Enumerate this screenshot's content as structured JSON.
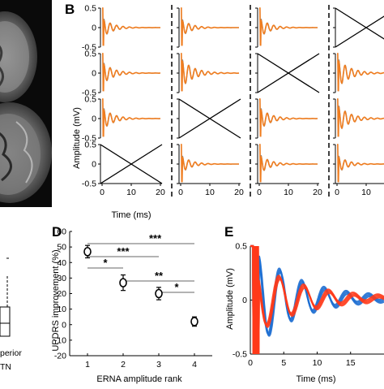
{
  "panels": {
    "A": {
      "bottom_label_1": "perior",
      "bottom_label_2": "TN"
    },
    "B": {
      "letter": "B",
      "xlabel": "Time (ms)",
      "ylabel": "Amplitude (mV)",
      "yticks": [
        "0.5",
        "0",
        "-0.5"
      ],
      "xticks": [
        "0",
        "10",
        "20"
      ],
      "xlim": [
        0,
        20
      ],
      "ylim": [
        -0.5,
        0.5
      ],
      "colors": {
        "trace1": "#f07d1f",
        "trace2": "#8a8a8a",
        "cross": "#000000",
        "divider": "#000000"
      },
      "grid": {
        "columns": 4,
        "rows": 4,
        "empty_cells": [
          [
            0,
            3
          ],
          [
            1,
            2
          ],
          [
            2,
            1
          ],
          [
            3,
            0
          ]
        ],
        "trace_strength": [
          [
            0.6,
            0.55,
            0.6,
            0.0
          ],
          [
            0.7,
            0.95,
            0.0,
            0.95
          ],
          [
            0.7,
            0.0,
            0.7,
            0.9
          ],
          [
            0.0,
            0.55,
            0.6,
            0.55
          ]
        ]
      }
    },
    "D": {
      "letter": "D",
      "chart_data": {
        "type": "scatter",
        "xlabel": "ERNA amplitude rank",
        "ylabel": "UPDRS improvement (%)",
        "x": [
          1,
          2,
          3,
          4
        ],
        "y": [
          47,
          27,
          20,
          2
        ],
        "error": [
          4,
          5,
          4,
          3
        ],
        "xlim": [
          0.5,
          4.5
        ],
        "ylim": [
          -20,
          60
        ],
        "xticks": [
          "1",
          "2",
          "3",
          "4"
        ],
        "yticks": [
          "60",
          "50",
          "40",
          "30",
          "20",
          "10",
          "0",
          "-10",
          "-20"
        ],
        "significance": [
          {
            "from": 1,
            "to": 4,
            "label": "***"
          },
          {
            "from": 1,
            "to": 3,
            "label": "***"
          },
          {
            "from": 1,
            "to": 2,
            "label": "*"
          },
          {
            "from": 2,
            "to": 4,
            "label": "**"
          },
          {
            "from": 3,
            "to": 4,
            "label": "*"
          }
        ],
        "colors": {
          "marker": "#000000",
          "bracket": "#9a9a9a"
        }
      }
    },
    "E": {
      "letter": "E",
      "chart_data": {
        "type": "line",
        "xlabel": "Time (ms)",
        "ylabel": "Amplitude (mV)",
        "xlim": [
          0,
          20
        ],
        "ylim": [
          -0.5,
          0.5
        ],
        "xticks": [
          "0",
          "5",
          "10",
          "15"
        ],
        "yticks": [
          "0.5",
          "0",
          "-0.5"
        ],
        "series": [
          {
            "color": "#1f6fd1",
            "freq": 0.3,
            "decay": 6.5,
            "amp": 0.42,
            "phase": 0.2
          },
          {
            "color": "#ff3a1a",
            "freq": 0.27,
            "decay": 7.0,
            "amp": 0.3,
            "phase": 0.9
          }
        ]
      }
    },
    "C": {
      "box_color": "#000000"
    }
  }
}
